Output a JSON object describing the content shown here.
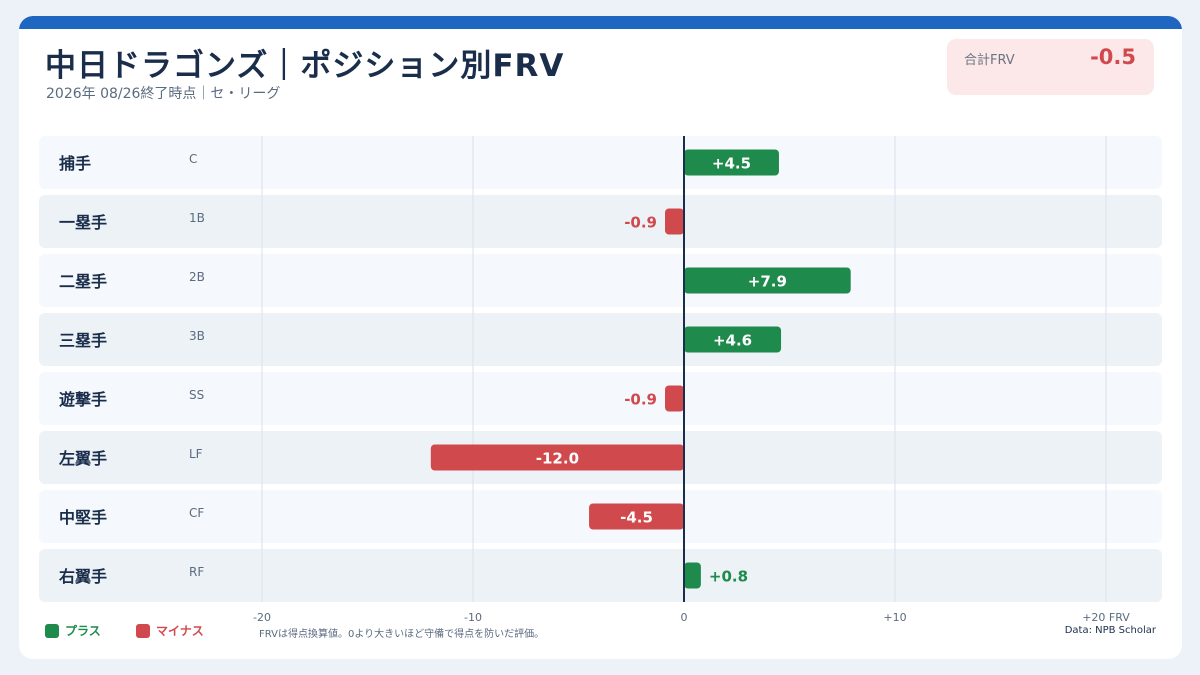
{
  "header": {
    "title": "中日ドラゴンズ｜ポジション別FRV",
    "subtitle": "2026年 08/26終了時点｜セ・リーグ"
  },
  "summary": {
    "label": "合計FRV",
    "value": "-0.5"
  },
  "colors": {
    "accent": "#1f66c1",
    "positive": "#1e8a4c",
    "negative": "#d04a4d"
  },
  "rows": [
    {
      "name": "捕手",
      "code": "C"
    },
    {
      "name": "一塁手",
      "code": "1B"
    },
    {
      "name": "二塁手",
      "code": "2B"
    },
    {
      "name": "三塁手",
      "code": "3B"
    },
    {
      "name": "遊撃手",
      "code": "SS"
    },
    {
      "name": "左翼手",
      "code": "LF"
    },
    {
      "name": "中堅手",
      "code": "CF"
    },
    {
      "name": "右翼手",
      "code": "RF"
    }
  ],
  "chart_data": {
    "type": "bar",
    "orientation": "horizontal",
    "categories": [
      "捕手",
      "一塁手",
      "二塁手",
      "三塁手",
      "遊撃手",
      "左翼手",
      "中堅手",
      "右翼手"
    ],
    "values": [
      4.5,
      -0.9,
      7.9,
      4.6,
      -0.9,
      -12.0,
      -4.5,
      0.8
    ],
    "value_labels": [
      "+4.5",
      "-0.9",
      "+7.9",
      "+4.6",
      "-0.9",
      "-12.0",
      "-4.5",
      "+0.8"
    ],
    "xlim": [
      -20,
      20
    ],
    "x_ticks": [
      -20,
      -10,
      0,
      10,
      20
    ],
    "x_tick_labels": [
      "-20",
      "-10",
      "0",
      "+10",
      "+20 FRV"
    ],
    "grid": true
  },
  "legend": [
    {
      "label": "プラス",
      "color": "#1e8a4c"
    },
    {
      "label": "マイナス",
      "color": "#d04a4d"
    }
  ],
  "footer": {
    "note": "FRVは得点換算値。0より大きいほど守備で得点を防いだ評価。",
    "source": "Data: NPB Scholar"
  }
}
